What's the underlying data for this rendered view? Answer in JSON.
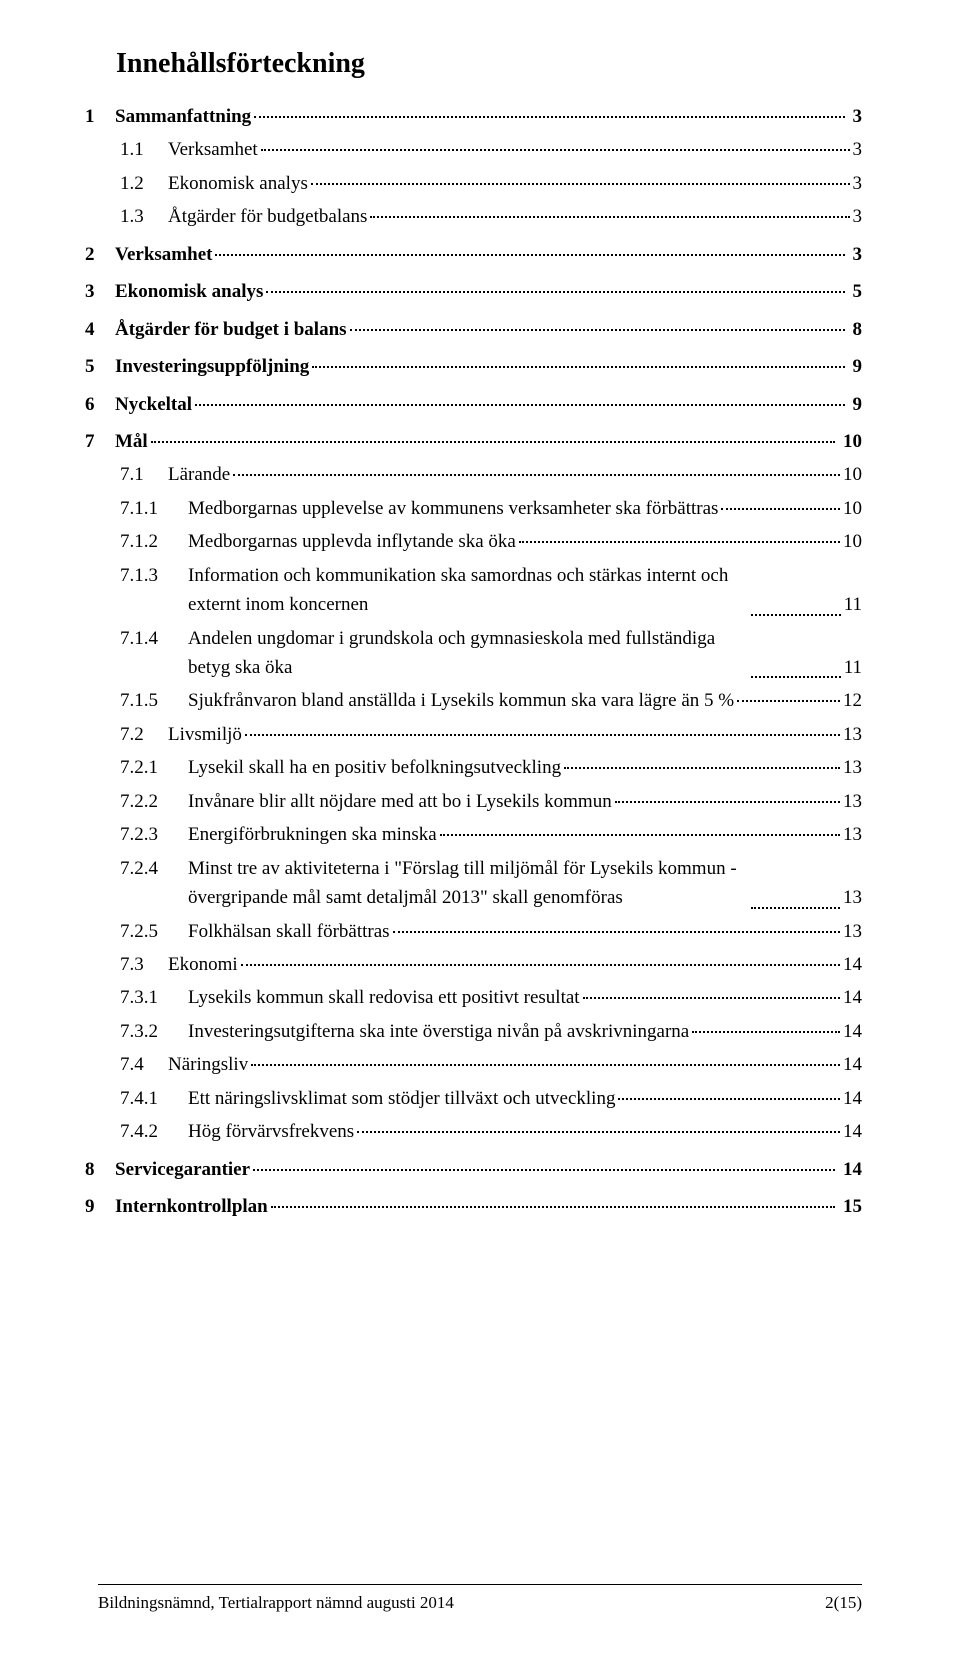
{
  "title": "Innehållsförteckning",
  "toc": [
    {
      "level": 1,
      "num": "1",
      "label": "Sammanfattning",
      "page": "3"
    },
    {
      "level": 2,
      "num": "1.1",
      "label": "Verksamhet",
      "page": "3"
    },
    {
      "level": 2,
      "num": "1.2",
      "label": "Ekonomisk analys",
      "page": "3"
    },
    {
      "level": 2,
      "num": "1.3",
      "label": "Åtgärder för budgetbalans",
      "page": "3"
    },
    {
      "level": 1,
      "num": "2",
      "label": "Verksamhet",
      "page": "3"
    },
    {
      "level": 1,
      "num": "3",
      "label": "Ekonomisk analys",
      "page": "5"
    },
    {
      "level": 1,
      "num": "4",
      "label": "Åtgärder för budget i balans",
      "page": "8"
    },
    {
      "level": 1,
      "num": "5",
      "label": "Investeringsuppföljning",
      "page": "9"
    },
    {
      "level": 1,
      "num": "6",
      "label": "Nyckeltal",
      "page": "9"
    },
    {
      "level": 1,
      "num": "7",
      "label": "Mål",
      "page": "10"
    },
    {
      "level": 2,
      "num": "7.1",
      "label": "Lärande",
      "page": "10"
    },
    {
      "level": 3,
      "num": "7.1.1",
      "label": "Medborgarnas upplevelse av kommunens verksamheter ska förbättras",
      "page": "10"
    },
    {
      "level": 3,
      "num": "7.1.2",
      "label": "Medborgarnas upplevda inflytande ska öka",
      "page": "10"
    },
    {
      "level": 3,
      "num": "7.1.3",
      "label": "Information och kommunikation ska samordnas och stärkas internt och externt inom koncernen",
      "page": "11",
      "multi": true
    },
    {
      "level": 3,
      "num": "7.1.4",
      "label": "Andelen ungdomar i grundskola och gymnasieskola med fullständiga betyg ska öka",
      "page": "11",
      "multi": true
    },
    {
      "level": 3,
      "num": "7.1.5",
      "label": "Sjukfrånvaron bland anställda i Lysekils kommun ska vara lägre än 5 %",
      "page": "12"
    },
    {
      "level": 2,
      "num": "7.2",
      "label": "Livsmiljö",
      "page": "13"
    },
    {
      "level": 3,
      "num": "7.2.1",
      "label": "Lysekil skall ha en positiv befolkningsutveckling",
      "page": "13"
    },
    {
      "level": 3,
      "num": "7.2.2",
      "label": "Invånare blir allt nöjdare med att bo i Lysekils kommun",
      "page": "13"
    },
    {
      "level": 3,
      "num": "7.2.3",
      "label": "Energiförbrukningen ska minska",
      "page": "13"
    },
    {
      "level": 3,
      "num": "7.2.4",
      "label": "Minst tre av aktiviteterna i \"Förslag till miljömål för Lysekils kommun - övergripande mål samt detaljmål 2013\" skall genomföras",
      "page": "13",
      "multi": true
    },
    {
      "level": 3,
      "num": "7.2.5",
      "label": "Folkhälsan skall förbättras",
      "page": "13"
    },
    {
      "level": 2,
      "num": "7.3",
      "label": "Ekonomi",
      "page": "14"
    },
    {
      "level": 3,
      "num": "7.3.1",
      "label": "Lysekils kommun skall redovisa ett positivt resultat",
      "page": "14"
    },
    {
      "level": 3,
      "num": "7.3.2",
      "label": "Investeringsutgifterna ska inte överstiga nivån på avskrivningarna",
      "page": "14"
    },
    {
      "level": 2,
      "num": "7.4",
      "label": "Näringsliv",
      "page": "14"
    },
    {
      "level": 3,
      "num": "7.4.1",
      "label": "Ett näringslivsklimat som stödjer tillväxt och utveckling",
      "page": "14"
    },
    {
      "level": 3,
      "num": "7.4.2",
      "label": "Hög förvärvsfrekvens",
      "page": "14"
    },
    {
      "level": 1,
      "num": "8",
      "label": "Servicegarantier",
      "page": "14"
    },
    {
      "level": 1,
      "num": "9",
      "label": "Internkontrollplan",
      "page": "15"
    }
  ],
  "footer_left": "Bildningsnämnd, Tertialrapport nämnd augusti 2014",
  "footer_right": "2(15)"
}
